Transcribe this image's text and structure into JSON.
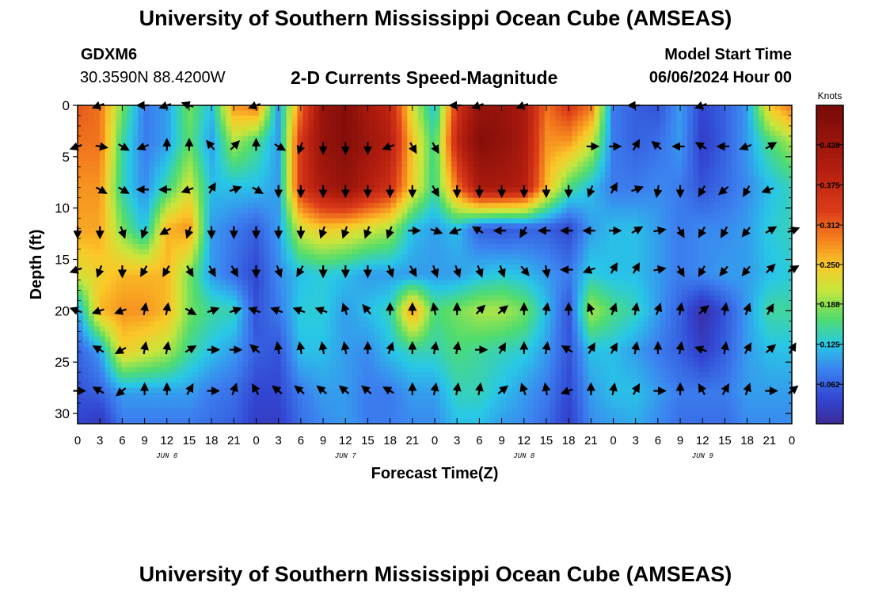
{
  "header": {
    "title_top": "University of Southern Mississippi Ocean Cube (AMSEAS)",
    "title_bottom": "University of Southern Mississippi Ocean Cube (AMSEAS)",
    "station_id": "GDXM6",
    "station_coords": "30.3590N  88.4200W",
    "plot_title": "2-D Currents Speed-Magnitude",
    "model_start_label": "Model Start Time",
    "model_start_value": "06/06/2024 Hour 00"
  },
  "chart_data": {
    "type": "heatmap",
    "title": "2-D Currents Speed-Magnitude",
    "xlabel": "Forecast Time(Z)",
    "ylabel": "Depth (ft)",
    "x_range_hours": [
      0,
      96
    ],
    "y_range_ft": [
      0,
      31
    ],
    "x_tick_labels": [
      "0",
      "3",
      "6",
      "9",
      "12",
      "15",
      "18",
      "21",
      "0",
      "3",
      "6",
      "9",
      "12",
      "15",
      "18",
      "21",
      "0",
      "3",
      "6",
      "9",
      "12",
      "15",
      "18",
      "21",
      "0",
      "3",
      "6",
      "9",
      "12",
      "15",
      "18",
      "21",
      "0"
    ],
    "y_tick_labels": [
      "0",
      "5",
      "10",
      "15",
      "20",
      "25",
      "30"
    ],
    "y_tick_values": [
      0,
      5,
      10,
      15,
      20,
      25,
      30
    ],
    "date_labels": [
      "JUN 6",
      "JUN 7",
      "JUN 8",
      "JUN 9"
    ],
    "colorbar": {
      "label": "Knots",
      "min": 0.0,
      "max": 0.5,
      "tick_values": [
        0.062,
        0.125,
        0.188,
        0.25,
        0.312,
        0.375,
        0.438
      ],
      "tick_labels": [
        "0.062",
        "0.125",
        "0.188",
        "0.250",
        "0.312",
        "0.375",
        "0.438"
      ]
    },
    "depth_levels_ft": [
      0,
      3.5,
      8,
      12,
      16.5,
      20,
      24,
      28,
      31
    ],
    "time_hours": [
      0,
      3,
      6,
      9,
      12,
      15,
      18,
      21,
      24,
      27,
      30,
      33,
      36,
      39,
      42,
      45,
      48,
      51,
      54,
      57,
      60,
      63,
      66,
      69,
      72,
      75,
      78,
      81,
      84,
      87,
      90,
      93,
      96
    ],
    "speed_knots": [
      [
        0.32,
        0.3,
        0.18,
        0.08,
        0.1,
        0.18,
        0.12,
        0.28,
        0.3,
        0.1,
        0.3,
        0.45,
        0.48,
        0.42,
        0.38,
        0.22,
        0.12,
        0.35,
        0.45,
        0.45,
        0.42,
        0.3,
        0.35,
        0.3,
        0.08,
        0.06,
        0.05,
        0.1,
        0.04,
        0.06,
        0.1,
        0.25,
        0.3
      ],
      [
        0.3,
        0.3,
        0.15,
        0.08,
        0.1,
        0.17,
        0.1,
        0.2,
        0.16,
        0.1,
        0.35,
        0.45,
        0.48,
        0.44,
        0.4,
        0.25,
        0.15,
        0.38,
        0.48,
        0.46,
        0.42,
        0.28,
        0.28,
        0.22,
        0.08,
        0.06,
        0.07,
        0.1,
        0.03,
        0.06,
        0.1,
        0.16,
        0.2
      ],
      [
        0.28,
        0.28,
        0.14,
        0.09,
        0.15,
        0.22,
        0.12,
        0.12,
        0.12,
        0.1,
        0.35,
        0.42,
        0.45,
        0.4,
        0.36,
        0.24,
        0.15,
        0.3,
        0.42,
        0.42,
        0.4,
        0.26,
        0.16,
        0.12,
        0.08,
        0.08,
        0.09,
        0.08,
        0.05,
        0.07,
        0.09,
        0.12,
        0.14
      ],
      [
        0.27,
        0.27,
        0.18,
        0.12,
        0.26,
        0.28,
        0.1,
        0.08,
        0.06,
        0.1,
        0.22,
        0.25,
        0.24,
        0.22,
        0.2,
        0.12,
        0.1,
        0.12,
        0.06,
        0.05,
        0.06,
        0.06,
        0.04,
        0.1,
        0.12,
        0.12,
        0.1,
        0.08,
        0.09,
        0.09,
        0.1,
        0.13,
        0.14
      ],
      [
        0.22,
        0.24,
        0.26,
        0.26,
        0.26,
        0.18,
        0.1,
        0.07,
        0.04,
        0.09,
        0.12,
        0.13,
        0.12,
        0.1,
        0.1,
        0.1,
        0.1,
        0.1,
        0.12,
        0.13,
        0.12,
        0.1,
        0.08,
        0.13,
        0.12,
        0.12,
        0.1,
        0.08,
        0.09,
        0.1,
        0.1,
        0.12,
        0.13
      ],
      [
        0.1,
        0.26,
        0.28,
        0.28,
        0.26,
        0.18,
        0.15,
        0.14,
        0.05,
        0.08,
        0.13,
        0.13,
        0.1,
        0.12,
        0.14,
        0.28,
        0.16,
        0.18,
        0.2,
        0.2,
        0.18,
        0.12,
        0.05,
        0.2,
        0.16,
        0.14,
        0.1,
        0.06,
        0.01,
        0.05,
        0.1,
        0.15,
        0.15
      ],
      [
        0.06,
        0.1,
        0.24,
        0.22,
        0.2,
        0.15,
        0.12,
        0.1,
        0.06,
        0.05,
        0.12,
        0.12,
        0.1,
        0.09,
        0.12,
        0.14,
        0.14,
        0.16,
        0.15,
        0.14,
        0.13,
        0.1,
        0.05,
        0.12,
        0.12,
        0.1,
        0.08,
        0.06,
        0.03,
        0.06,
        0.1,
        0.12,
        0.12
      ],
      [
        0.05,
        0.06,
        0.1,
        0.1,
        0.1,
        0.1,
        0.08,
        0.07,
        0.04,
        0.04,
        0.08,
        0.1,
        0.1,
        0.08,
        0.08,
        0.1,
        0.1,
        0.14,
        0.14,
        0.12,
        0.1,
        0.08,
        0.04,
        0.1,
        0.12,
        0.12,
        0.1,
        0.08,
        0.08,
        0.08,
        0.1,
        0.1,
        0.1
      ],
      [
        0.04,
        0.02,
        0.08,
        0.08,
        0.08,
        0.08,
        0.07,
        0.06,
        0.03,
        0.03,
        0.07,
        0.09,
        0.1,
        0.08,
        0.08,
        0.09,
        0.09,
        0.12,
        0.12,
        0.1,
        0.09,
        0.07,
        0.03,
        0.09,
        0.1,
        0.11,
        0.09,
        0.07,
        0.07,
        0.07,
        0.09,
        0.09,
        0.09
      ]
    ],
    "vector_depths_ft": [
      0,
      4,
      8.2,
      12.2,
      16,
      20,
      23.8,
      27.8
    ],
    "vector_hours": [
      0,
      3,
      6,
      9,
      12,
      15,
      18,
      21,
      24,
      27,
      30,
      33,
      36,
      39,
      42,
      45,
      48,
      51,
      54,
      57,
      60,
      63,
      66,
      69,
      72,
      75,
      78,
      81,
      84,
      87,
      90,
      93,
      96
    ],
    "vector_directions_deg": [
      [
        null,
        200,
        null,
        180,
        200,
        160,
        null,
        null,
        200,
        null,
        null,
        null,
        null,
        null,
        null,
        null,
        null,
        180,
        200,
        null,
        200,
        null,
        null,
        null,
        null,
        180,
        null,
        null,
        200,
        null,
        null,
        null,
        null
      ],
      [
        200,
        350,
        330,
        200,
        90,
        90,
        130,
        45,
        90,
        330,
        250,
        270,
        270,
        270,
        200,
        300,
        300,
        null,
        null,
        null,
        null,
        null,
        null,
        0,
        0,
        60,
        140,
        180,
        150,
        180,
        200,
        30,
        null
      ],
      [
        null,
        330,
        330,
        180,
        180,
        200,
        60,
        20,
        330,
        270,
        270,
        270,
        270,
        270,
        270,
        270,
        300,
        270,
        270,
        270,
        270,
        270,
        270,
        250,
        60,
        20,
        260,
        270,
        240,
        220,
        240,
        200,
        null
      ],
      [
        270,
        270,
        290,
        250,
        210,
        250,
        270,
        270,
        270,
        270,
        270,
        250,
        250,
        250,
        250,
        0,
        340,
        200,
        150,
        180,
        240,
        180,
        180,
        180,
        0,
        30,
        10,
        300,
        240,
        240,
        230,
        30,
        20
      ],
      [
        200,
        250,
        270,
        240,
        240,
        300,
        300,
        300,
        270,
        290,
        240,
        270,
        270,
        270,
        290,
        300,
        290,
        290,
        290,
        290,
        310,
        280,
        180,
        200,
        60,
        60,
        10,
        300,
        240,
        230,
        230,
        45,
        30
      ],
      [
        160,
        200,
        200,
        80,
        80,
        330,
        20,
        20,
        160,
        160,
        160,
        160,
        110,
        130,
        90,
        90,
        100,
        90,
        45,
        40,
        90,
        80,
        90,
        110,
        70,
        80,
        70,
        80,
        40,
        80,
        70,
        60,
        null
      ],
      [
        null,
        150,
        210,
        80,
        80,
        30,
        0,
        0,
        140,
        100,
        100,
        100,
        100,
        90,
        70,
        90,
        80,
        80,
        0,
        60,
        90,
        80,
        150,
        60,
        60,
        80,
        90,
        80,
        160,
        80,
        60,
        40,
        60
      ],
      [
        0,
        150,
        220,
        90,
        90,
        60,
        0,
        70,
        120,
        140,
        140,
        140,
        140,
        140,
        150,
        90,
        80,
        80,
        80,
        40,
        110,
        100,
        200,
        90,
        80,
        60,
        0,
        90,
        120,
        60,
        70,
        0,
        40
      ]
    ]
  }
}
